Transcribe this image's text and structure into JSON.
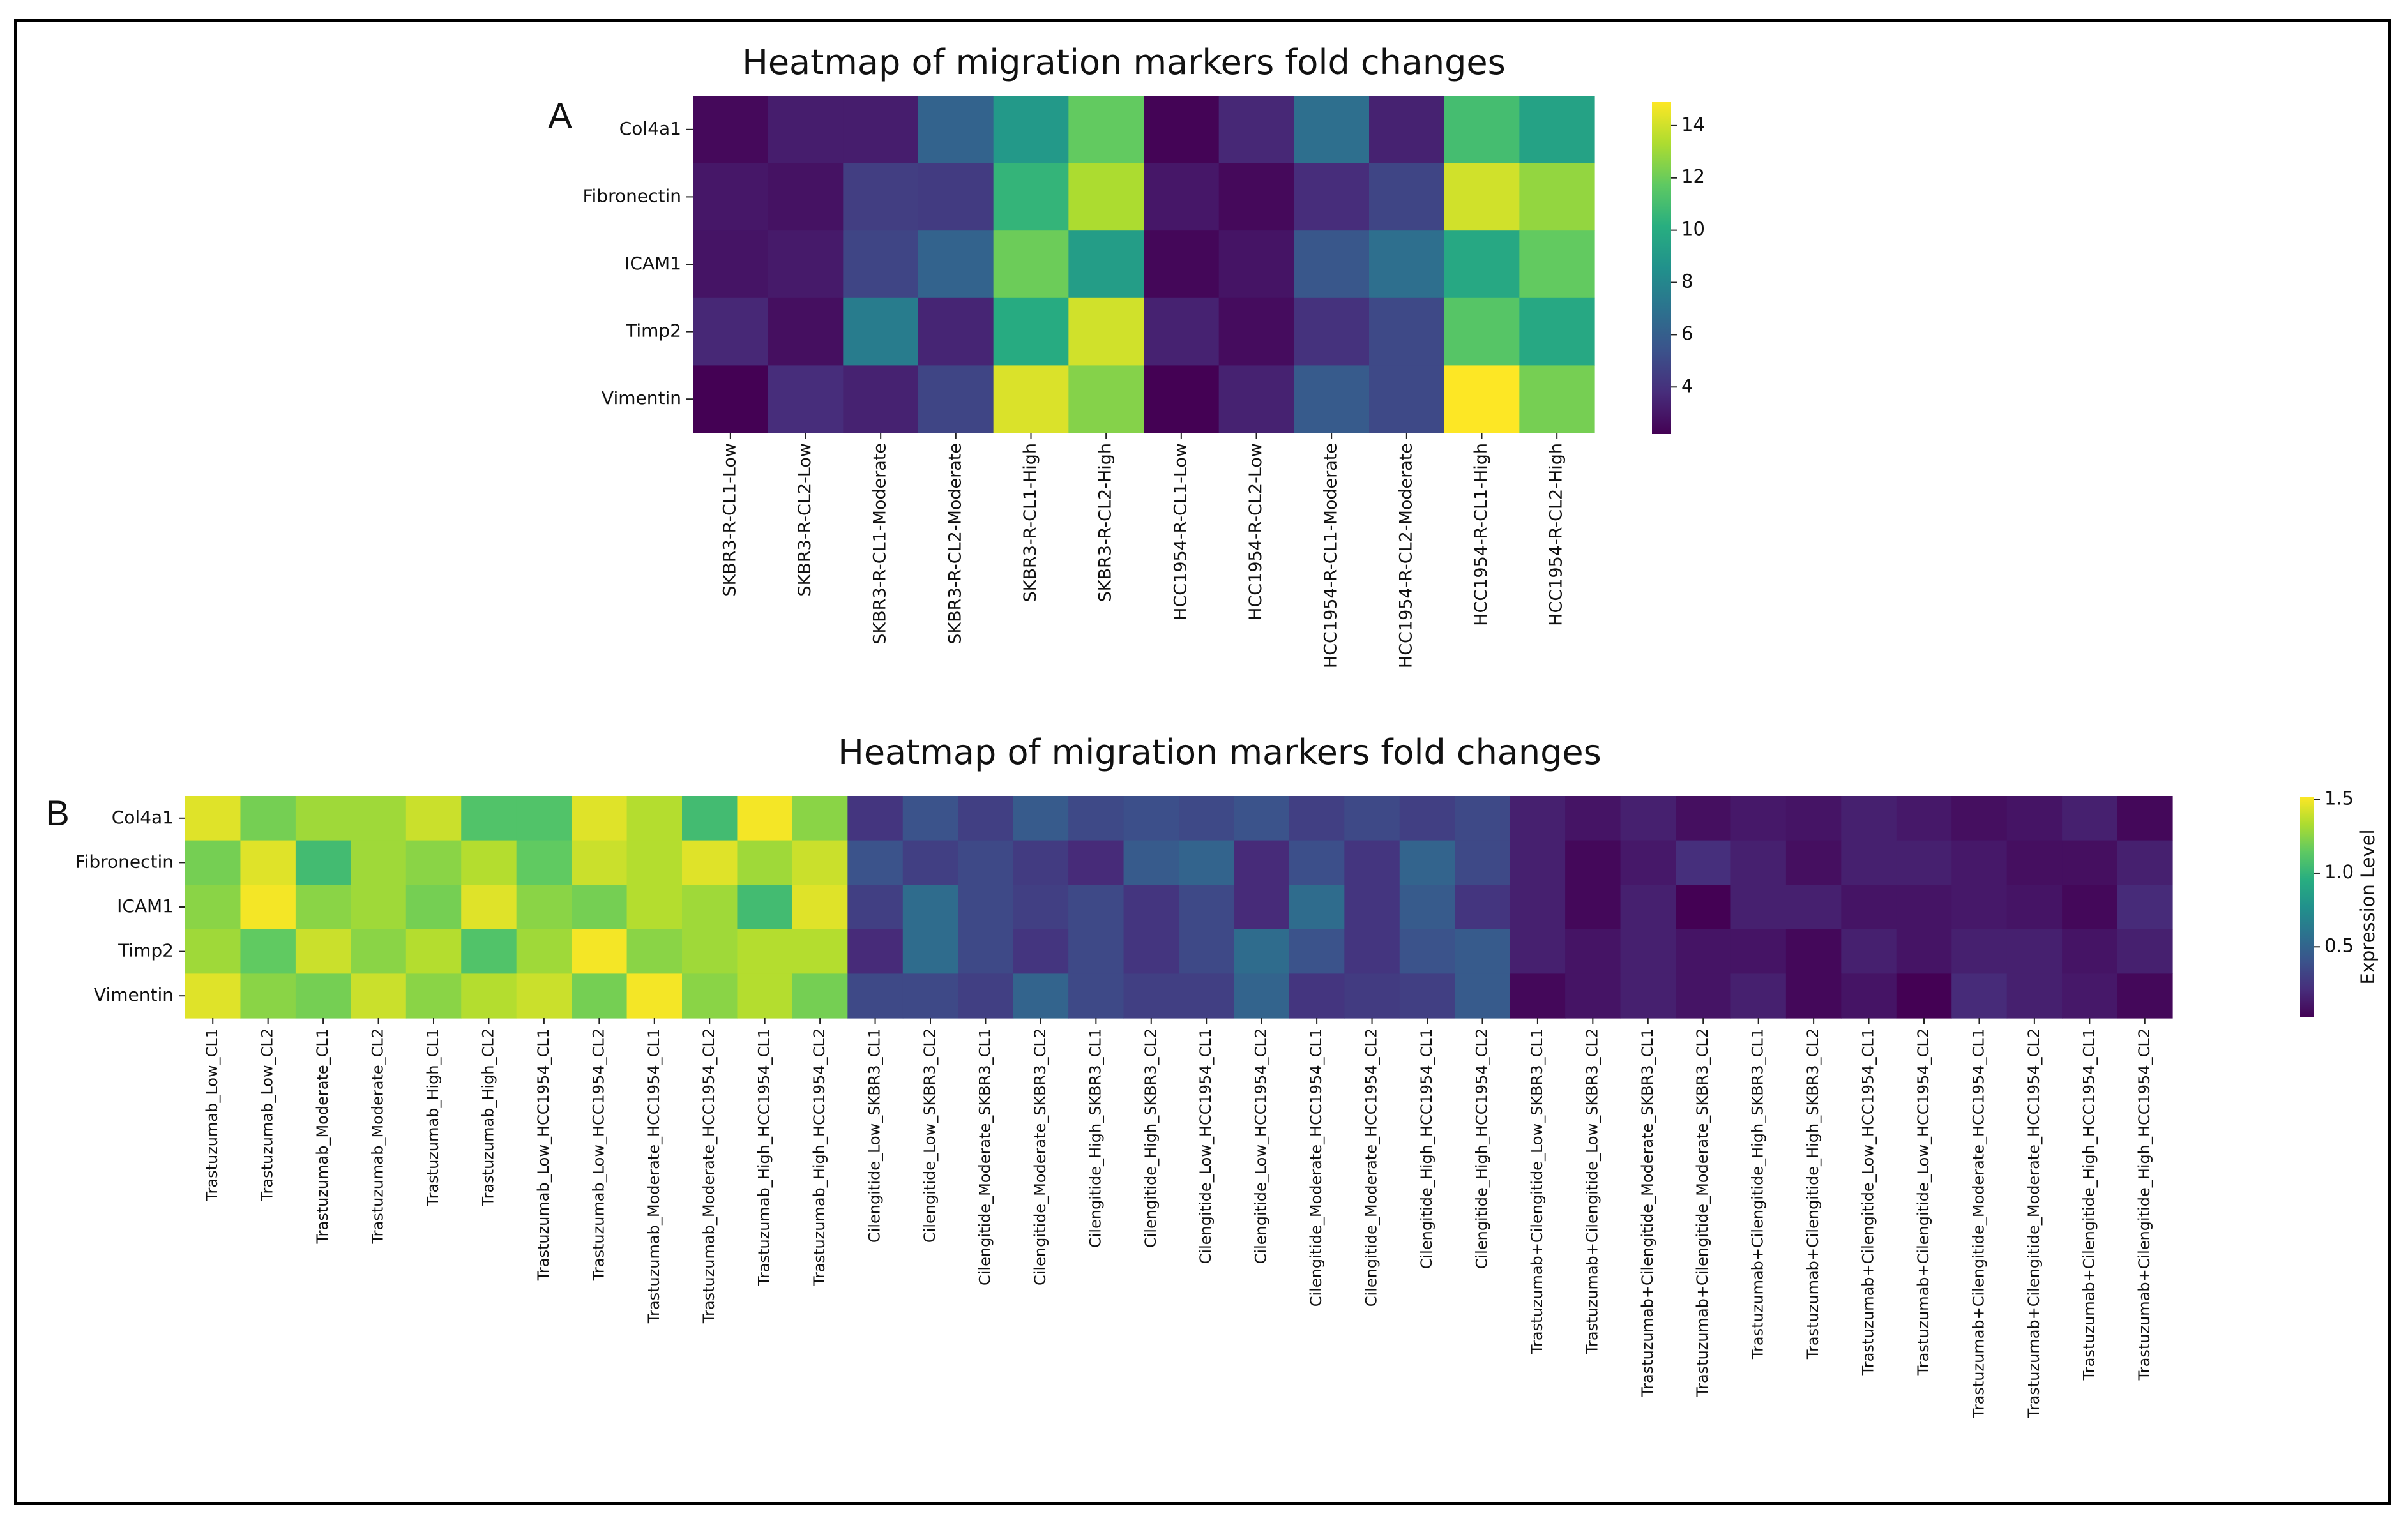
{
  "chart_data": [
    {
      "type": "heatmap",
      "panel_label": "A",
      "title": "Heatmap of migration markers fold changes",
      "rows": [
        "Col4a1",
        "Fibronectin",
        "ICAM1",
        "Timp2",
        "Vimentin"
      ],
      "columns": [
        "SKBR3-R-CL1-Low",
        "SKBR3-R-CL2-Low",
        "SKBR3-R-CL1-Moderate",
        "SKBR3-R-CL2-Moderate",
        "SKBR3-R-CL1-High",
        "SKBR3-R-CL2-High",
        "HCC1954-R-CL1-Low",
        "HCC1954-R-CL2-Low",
        "HCC1954-R-CL1-Moderate",
        "HCC1954-R-CL2-Moderate",
        "HCC1954-R-CL1-High",
        "HCC1954-R-CL2-High"
      ],
      "values": [
        [
          2.5,
          3.2,
          3.2,
          6.2,
          9.0,
          11.8,
          2.3,
          3.6,
          6.8,
          3.4,
          11.0,
          9.5
        ],
        [
          3.0,
          2.8,
          4.5,
          4.4,
          10.5,
          13.3,
          3.0,
          2.5,
          3.8,
          4.8,
          14.0,
          12.8
        ],
        [
          2.9,
          3.1,
          4.8,
          6.2,
          12.0,
          9.2,
          2.4,
          2.9,
          5.6,
          6.8,
          9.8,
          11.8
        ],
        [
          3.6,
          2.7,
          7.5,
          3.5,
          10.0,
          14.0,
          3.4,
          2.6,
          4.0,
          5.0,
          11.5,
          9.8
        ],
        [
          2.2,
          3.8,
          3.4,
          4.8,
          14.2,
          12.5,
          2.2,
          3.4,
          5.8,
          5.0,
          14.9,
          12.2
        ]
      ],
      "colorbar": {
        "min": 2.2,
        "max": 14.9,
        "ticks": [
          4,
          6,
          8,
          10,
          12,
          14
        ],
        "label": ""
      },
      "colormap": "viridis"
    },
    {
      "type": "heatmap",
      "panel_label": "B",
      "title": "Heatmap of migration markers fold changes",
      "rows": [
        "Col4a1",
        "Fibronectin",
        "ICAM1",
        "Timp2",
        "Vimentin"
      ],
      "columns": [
        "Trastuzumab_Low_CL1",
        "Trastuzumab_Low_CL2",
        "Trastuzumab_Moderate_CL1",
        "Trastuzumab_Moderate_CL2",
        "Trastuzumab_High_CL1",
        "Trastuzumab_High_CL2",
        "Trastuzumab_Low_HCC1954_CL1",
        "Trastuzumab_Low_HCC1954_CL2",
        "Trastuzumab_Moderate_HCC1954_CL1",
        "Trastuzumab_Moderate_HCC1954_CL2",
        "Trastuzumab_High_HCC1954_CL1",
        "Trastuzumab_High_HCC1954_CL2",
        "Cilengitide_Low_SKBR3_CL1",
        "Cilengitide_Low_SKBR3_CL2",
        "Cilengitide_Moderate_SKBR3_CL1",
        "Cilengitide_Moderate_SKBR3_CL2",
        "Cilengitide_High_SKBR3_CL1",
        "Cilengitide_High_SKBR3_CL2",
        "Cilengitide_Low_HCC1954_CL1",
        "Cilengitide_Low_HCC1954_CL2",
        "Cilengitide_Moderate_HCC1954_CL1",
        "Cilengitide_Moderate_HCC1954_CL2",
        "Cilengitide_High_HCC1954_CL1",
        "Cilengitide_High_HCC1954_CL2",
        "Trastuzumab+Cilengitide_Low_SKBR3_CL1",
        "Trastuzumab+Cilengitide_Low_SKBR3_CL2",
        "Trastuzumab+Cilengitide_Moderate_SKBR3_CL1",
        "Trastuzumab+Cilengitide_Moderate_SKBR3_CL2",
        "Trastuzumab+Cilengitide_High_SKBR3_CL1",
        "Trastuzumab+Cilengitide_High_SKBR3_CL2",
        "Trastuzumab+Cilengitide_Low_HCC1954_CL1",
        "Trastuzumab+Cilengitide_Low_HCC1954_CL2",
        "Trastuzumab+Cilengitide_Moderate_HCC1954_CL1",
        "Trastuzumab+Cilengitide_Moderate_HCC1954_CL2",
        "Trastuzumab+Cilengitide_High_HCC1954_CL1",
        "Trastuzumab+Cilengitide_High_HCC1954_CL2"
      ],
      "values": [
        [
          1.45,
          1.2,
          1.3,
          1.3,
          1.4,
          1.1,
          1.1,
          1.45,
          1.35,
          1.05,
          1.5,
          1.25,
          0.25,
          0.4,
          0.3,
          0.45,
          0.35,
          0.38,
          0.35,
          0.4,
          0.3,
          0.35,
          0.3,
          0.35,
          0.15,
          0.1,
          0.15,
          0.08,
          0.12,
          0.1,
          0.15,
          0.12,
          0.08,
          0.1,
          0.15,
          0.05
        ],
        [
          1.2,
          1.45,
          1.05,
          1.3,
          1.25,
          1.35,
          1.15,
          1.4,
          1.35,
          1.45,
          1.3,
          1.4,
          0.4,
          0.3,
          0.35,
          0.28,
          0.2,
          0.45,
          0.5,
          0.2,
          0.38,
          0.25,
          0.5,
          0.35,
          0.15,
          0.05,
          0.12,
          0.22,
          0.15,
          0.08,
          0.15,
          0.15,
          0.12,
          0.08,
          0.08,
          0.15
        ],
        [
          1.25,
          1.5,
          1.25,
          1.3,
          1.2,
          1.45,
          1.25,
          1.2,
          1.35,
          1.3,
          1.05,
          1.45,
          0.3,
          0.55,
          0.35,
          0.3,
          0.35,
          0.25,
          0.35,
          0.2,
          0.55,
          0.25,
          0.45,
          0.25,
          0.15,
          0.05,
          0.15,
          0.02,
          0.15,
          0.15,
          0.1,
          0.1,
          0.12,
          0.1,
          0.05,
          0.2
        ],
        [
          1.3,
          1.15,
          1.4,
          1.25,
          1.35,
          1.1,
          1.3,
          1.5,
          1.25,
          1.3,
          1.35,
          1.35,
          0.2,
          0.55,
          0.35,
          0.25,
          0.35,
          0.25,
          0.35,
          0.55,
          0.4,
          0.25,
          0.4,
          0.45,
          0.15,
          0.1,
          0.15,
          0.1,
          0.1,
          0.05,
          0.15,
          0.1,
          0.15,
          0.15,
          0.1,
          0.15
        ],
        [
          1.45,
          1.25,
          1.2,
          1.4,
          1.25,
          1.35,
          1.4,
          1.2,
          1.5,
          1.25,
          1.35,
          1.2,
          0.35,
          0.35,
          0.3,
          0.5,
          0.35,
          0.3,
          0.3,
          0.5,
          0.25,
          0.28,
          0.3,
          0.45,
          0.05,
          0.1,
          0.15,
          0.1,
          0.15,
          0.05,
          0.1,
          0.02,
          0.2,
          0.15,
          0.12,
          0.05
        ]
      ],
      "colorbar": {
        "min": 0.02,
        "max": 1.52,
        "ticks": [
          "0.5",
          "1.0",
          "1.5"
        ],
        "label": "Expression Level"
      },
      "colormap": "viridis"
    }
  ]
}
